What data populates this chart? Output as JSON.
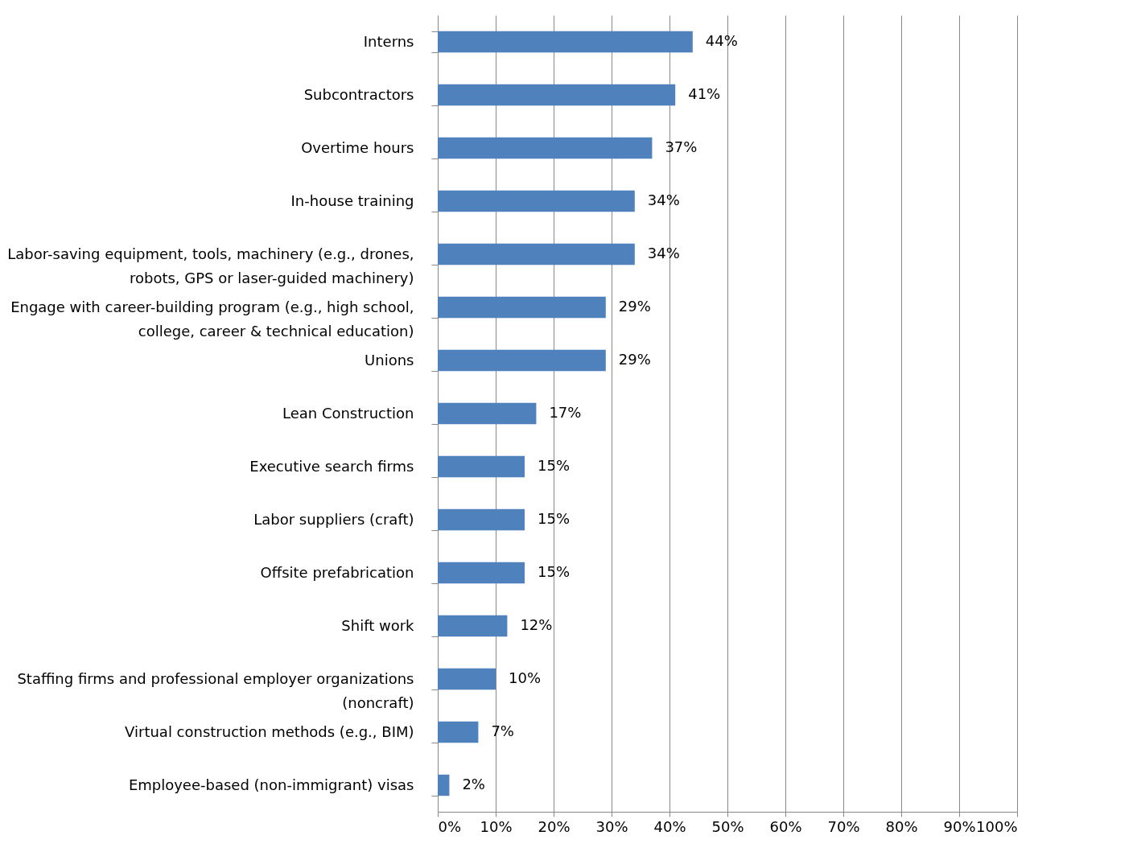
{
  "chart_data": {
    "type": "bar",
    "orientation": "horizontal",
    "categories": [
      "Interns",
      "Subcontractors",
      "Overtime hours",
      "In-house training",
      "Labor-saving equipment, tools, machinery (e.g., drones, robots, GPS or laser-guided machinery)",
      "Engage with career-building program (e.g., high school, college, career & technical education)",
      "Unions",
      "Lean Construction",
      "Executive search firms",
      "Labor suppliers (craft)",
      "Offsite prefabrication",
      "Shift work",
      "Staffing firms and professional employer organizations (noncraft)",
      "Virtual construction methods (e.g., BIM)",
      "Employee-based (non-immigrant) visas"
    ],
    "values": [
      44,
      41,
      37,
      34,
      34,
      29,
      29,
      17,
      15,
      15,
      15,
      12,
      10,
      7,
      2
    ],
    "value_labels": [
      "44%",
      "41%",
      "37%",
      "34%",
      "34%",
      "29%",
      "29%",
      "17%",
      "15%",
      "15%",
      "15%",
      "12%",
      "10%",
      "7%",
      "2%"
    ],
    "color": "#4f81bd",
    "xlim": [
      0,
      100
    ],
    "xticks": [
      {
        "value": 0,
        "label": "0%"
      },
      {
        "value": 10,
        "label": "10%"
      },
      {
        "value": 20,
        "label": "20%"
      },
      {
        "value": 30,
        "label": "30%"
      },
      {
        "value": 40,
        "label": "40%"
      },
      {
        "value": 50,
        "label": "50%"
      },
      {
        "value": 60,
        "label": "60%"
      },
      {
        "value": 70,
        "label": "70%"
      },
      {
        "value": 80,
        "label": "80%"
      },
      {
        "value": 90,
        "label": "90%"
      },
      {
        "value": 100,
        "label": "100%"
      }
    ],
    "grid": "x"
  }
}
